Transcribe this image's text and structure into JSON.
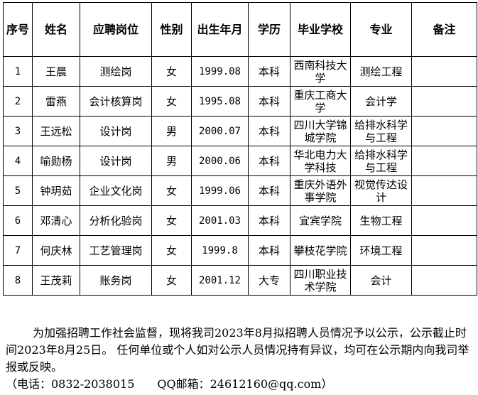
{
  "table": {
    "headers": [
      "序号",
      "姓名",
      "应聘岗位",
      "性别",
      "出生年月",
      "学历",
      "毕业学校",
      "专业",
      "备注"
    ],
    "rows": [
      [
        "1",
        "王晨",
        "测绘岗",
        "女",
        "1999.08",
        "本科",
        "西南科技大学",
        "测绘工程",
        ""
      ],
      [
        "2",
        "雷燕",
        "会计核算岗",
        "女",
        "1995.08",
        "本科",
        "重庆工商大学",
        "会计学",
        ""
      ],
      [
        "3",
        "王远松",
        "设计岗",
        "男",
        "2000.07",
        "本科",
        "四川大学锦城学院",
        "给排水科学与工程",
        ""
      ],
      [
        "4",
        "喻勋杨",
        "设计岗",
        "男",
        "2000.06",
        "本科",
        "华北电力大学科技",
        "给排水科学与工程",
        ""
      ],
      [
        "5",
        "钟玥茹",
        "企业文化岗",
        "女",
        "1999.06",
        "本科",
        "重庆外语外事学院",
        "视觉传达设计",
        ""
      ],
      [
        "6",
        "邓清心",
        "分析化验岗",
        "女",
        "2001.03",
        "本科",
        "宜宾学院",
        "生物工程",
        ""
      ],
      [
        "7",
        "何庆林",
        "工艺管理岗",
        "女",
        "1999.8",
        "本科",
        "攀枝花学院",
        "环境工程",
        ""
      ],
      [
        "8",
        "王茂莉",
        "账务岗",
        "女",
        "2001.12",
        "大专",
        "四川职业技术学院",
        "会计",
        ""
      ]
    ]
  },
  "notice": {
    "paragraph": "为加强招聘工作社会监督，现将我司2023年8月拟招聘人员情况予以公示，公示截止时间2023年8月25日。 任何单位或个人如对公示人员情况持有异议，均可在公示期内向我司举报或反映。",
    "contact": "（电话：0832-2038015　　QQ邮箱：24612160@qq.com）"
  }
}
